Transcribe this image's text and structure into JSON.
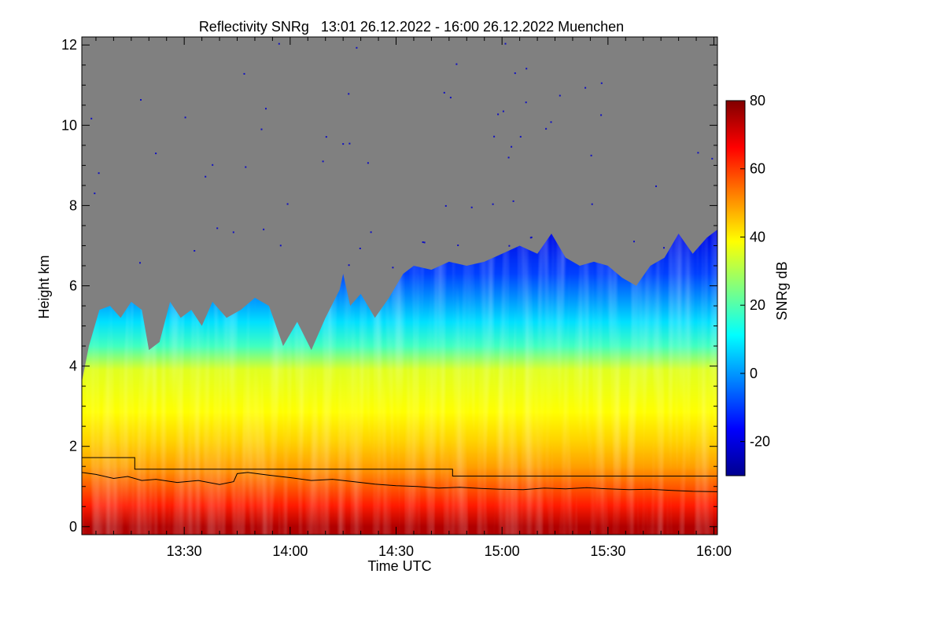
{
  "chart_data": {
    "type": "heatmap",
    "title": "Reflectivity SNRg   13:01 26.12.2022 - 16:00 26.12.2022 Muenchen",
    "xlabel": "Time UTC",
    "ylabel": "Height km",
    "x_unit": "minutes since 13:00 UTC",
    "xlim": [
      1,
      181
    ],
    "ylim": [
      -0.2,
      12.2
    ],
    "x_ticks": [
      {
        "value": 30,
        "label": "13:30"
      },
      {
        "value": 60,
        "label": "14:00"
      },
      {
        "value": 90,
        "label": "14:30"
      },
      {
        "value": 120,
        "label": "15:00"
      },
      {
        "value": 150,
        "label": "15:30"
      },
      {
        "value": 180,
        "label": "16:00"
      }
    ],
    "y_ticks": [
      {
        "value": 0,
        "label": "0"
      },
      {
        "value": 2,
        "label": "2"
      },
      {
        "value": 4,
        "label": "4"
      },
      {
        "value": 6,
        "label": "6"
      },
      {
        "value": 8,
        "label": "8"
      },
      {
        "value": 10,
        "label": "10"
      },
      {
        "value": 12,
        "label": "12"
      }
    ],
    "colorbar": {
      "label": "SNRg dB",
      "range": [
        -30,
        80
      ],
      "ticks": [
        {
          "value": -20,
          "label": "-20"
        },
        {
          "value": 0,
          "label": "0"
        },
        {
          "value": 20,
          "label": "20"
        },
        {
          "value": 40,
          "label": "40"
        },
        {
          "value": 60,
          "label": "60"
        },
        {
          "value": 80,
          "label": "80"
        }
      ]
    },
    "no_signal_color": "#808080",
    "colormap": [
      "#00008f",
      "#0000ff",
      "#0080ff",
      "#00ffff",
      "#80ff80",
      "#ffff00",
      "#ff8000",
      "#ff0000",
      "#800000"
    ],
    "signal_top_km": [
      {
        "t": 1,
        "h": 3.6
      },
      {
        "t": 3,
        "h": 4.5
      },
      {
        "t": 6,
        "h": 5.4
      },
      {
        "t": 9,
        "h": 5.5
      },
      {
        "t": 12,
        "h": 5.2
      },
      {
        "t": 15,
        "h": 5.6
      },
      {
        "t": 18,
        "h": 5.4
      },
      {
        "t": 20,
        "h": 4.4
      },
      {
        "t": 23,
        "h": 4.6
      },
      {
        "t": 26,
        "h": 5.6
      },
      {
        "t": 29,
        "h": 5.2
      },
      {
        "t": 32,
        "h": 5.4
      },
      {
        "t": 35,
        "h": 5.0
      },
      {
        "t": 38,
        "h": 5.6
      },
      {
        "t": 42,
        "h": 5.2
      },
      {
        "t": 46,
        "h": 5.4
      },
      {
        "t": 50,
        "h": 5.7
      },
      {
        "t": 54,
        "h": 5.5
      },
      {
        "t": 58,
        "h": 4.5
      },
      {
        "t": 62,
        "h": 5.1
      },
      {
        "t": 66,
        "h": 4.4
      },
      {
        "t": 70,
        "h": 5.2
      },
      {
        "t": 74,
        "h": 5.9
      },
      {
        "t": 75,
        "h": 6.3
      },
      {
        "t": 77,
        "h": 5.5
      },
      {
        "t": 80,
        "h": 5.8
      },
      {
        "t": 84,
        "h": 5.2
      },
      {
        "t": 88,
        "h": 5.7
      },
      {
        "t": 92,
        "h": 6.3
      },
      {
        "t": 95,
        "h": 6.5
      },
      {
        "t": 100,
        "h": 6.4
      },
      {
        "t": 105,
        "h": 6.6
      },
      {
        "t": 110,
        "h": 6.5
      },
      {
        "t": 115,
        "h": 6.6
      },
      {
        "t": 120,
        "h": 6.8
      },
      {
        "t": 125,
        "h": 7.0
      },
      {
        "t": 130,
        "h": 6.8
      },
      {
        "t": 134,
        "h": 7.3
      },
      {
        "t": 138,
        "h": 6.7
      },
      {
        "t": 142,
        "h": 6.5
      },
      {
        "t": 146,
        "h": 6.6
      },
      {
        "t": 150,
        "h": 6.5
      },
      {
        "t": 154,
        "h": 6.2
      },
      {
        "t": 158,
        "h": 6.0
      },
      {
        "t": 162,
        "h": 6.5
      },
      {
        "t": 166,
        "h": 6.7
      },
      {
        "t": 170,
        "h": 7.3
      },
      {
        "t": 174,
        "h": 6.8
      },
      {
        "t": 178,
        "h": 7.2
      },
      {
        "t": 181,
        "h": 7.4
      }
    ],
    "series": [
      {
        "name": "",
        "kind": "step",
        "points": [
          {
            "t": 1,
            "h": 1.72
          },
          {
            "t": 16,
            "h": 1.72
          },
          {
            "t": 16,
            "h": 1.43
          },
          {
            "t": 106,
            "h": 1.43
          },
          {
            "t": 106,
            "h": 1.26
          },
          {
            "t": 181,
            "h": 1.26
          }
        ]
      },
      {
        "name": "",
        "kind": "line",
        "points": [
          {
            "t": 1,
            "h": 1.35
          },
          {
            "t": 5,
            "h": 1.3
          },
          {
            "t": 10,
            "h": 1.2
          },
          {
            "t": 14,
            "h": 1.25
          },
          {
            "t": 18,
            "h": 1.15
          },
          {
            "t": 22,
            "h": 1.18
          },
          {
            "t": 28,
            "h": 1.1
          },
          {
            "t": 34,
            "h": 1.15
          },
          {
            "t": 40,
            "h": 1.05
          },
          {
            "t": 44,
            "h": 1.12
          },
          {
            "t": 45,
            "h": 1.32
          },
          {
            "t": 48,
            "h": 1.35
          },
          {
            "t": 54,
            "h": 1.28
          },
          {
            "t": 60,
            "h": 1.22
          },
          {
            "t": 66,
            "h": 1.15
          },
          {
            "t": 72,
            "h": 1.18
          },
          {
            "t": 78,
            "h": 1.12
          },
          {
            "t": 84,
            "h": 1.06
          },
          {
            "t": 90,
            "h": 1.02
          },
          {
            "t": 96,
            "h": 1.0
          },
          {
            "t": 102,
            "h": 0.96
          },
          {
            "t": 108,
            "h": 0.98
          },
          {
            "t": 114,
            "h": 0.95
          },
          {
            "t": 120,
            "h": 0.93
          },
          {
            "t": 126,
            "h": 0.92
          },
          {
            "t": 132,
            "h": 0.96
          },
          {
            "t": 138,
            "h": 0.94
          },
          {
            "t": 144,
            "h": 0.97
          },
          {
            "t": 150,
            "h": 0.94
          },
          {
            "t": 156,
            "h": 0.92
          },
          {
            "t": 162,
            "h": 0.93
          },
          {
            "t": 168,
            "h": 0.9
          },
          {
            "t": 174,
            "h": 0.88
          },
          {
            "t": 181,
            "h": 0.87
          }
        ]
      }
    ]
  }
}
